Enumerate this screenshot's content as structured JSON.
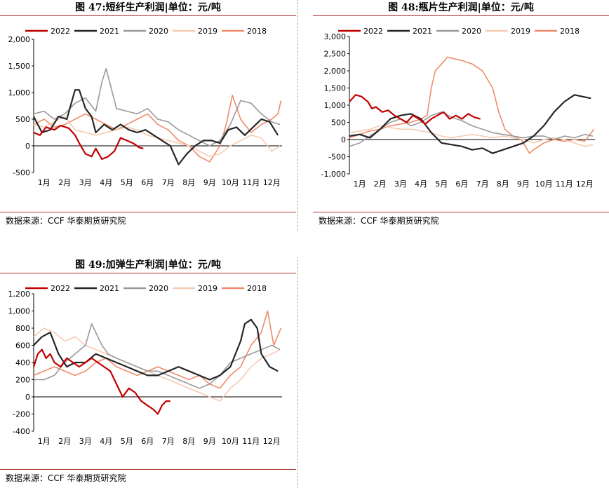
{
  "panels": [
    {
      "title": "图 47:短纤生产利润|单位：元/吨",
      "source": "数据来源：CCF 华泰期货研究院",
      "chart_data": {
        "type": "line",
        "ylim": [
          -500,
          2000
        ],
        "yticks": [
          "2,000",
          "1,500",
          "1,000",
          "500",
          "0",
          "-500"
        ],
        "ytick_values": [
          2000,
          1500,
          1000,
          500,
          0,
          -500
        ],
        "months": [
          "1月",
          "2月",
          "3月",
          "4月",
          "5月",
          "6月",
          "7月",
          "8月",
          "9月",
          "10月",
          "11月",
          "12月"
        ],
        "legend": [
          "2022",
          "2021",
          "2020",
          "2019",
          "2018"
        ],
        "series": [
          {
            "name": "2022",
            "color": "#c00000",
            "x": [
              0,
              0.3,
              0.6,
              1.0,
              1.3,
              1.7,
              2.0,
              2.2,
              2.5,
              2.8,
              3.0,
              3.3,
              3.6,
              3.9,
              4.2,
              4.5,
              4.8,
              5.1,
              5.3
            ],
            "y": [
              250,
              200,
              350,
              300,
              380,
              330,
              200,
              50,
              -150,
              -200,
              -50,
              -250,
              -200,
              -100,
              150,
              100,
              50,
              -30,
              -50
            ]
          },
          {
            "name": "2021",
            "color": "#262626",
            "x": [
              0,
              0.4,
              0.8,
              1.2,
              1.6,
              2.0,
              2.2,
              2.5,
              2.8,
              3.0,
              3.4,
              3.8,
              4.2,
              4.6,
              5.0,
              5.4,
              5.8,
              6.2,
              6.6,
              7.0,
              7.4,
              7.8,
              8.2,
              8.6,
              9.0,
              9.4,
              9.8,
              10.2,
              10.6,
              11.0,
              11.4,
              11.8
            ],
            "y": [
              550,
              250,
              300,
              550,
              500,
              1050,
              1050,
              700,
              550,
              250,
              400,
              300,
              400,
              300,
              250,
              300,
              200,
              100,
              0,
              -350,
              -150,
              0,
              100,
              100,
              50,
              300,
              350,
              200,
              350,
              500,
              450,
              200
            ]
          },
          {
            "name": "2020",
            "color": "#9a9a9a",
            "x": [
              0,
              0.5,
              1.0,
              1.5,
              2.0,
              2.5,
              3.0,
              3.3,
              3.5,
              3.7,
              4.0,
              4.5,
              5.0,
              5.5,
              6.0,
              6.5,
              7.0,
              7.5,
              8.0,
              8.5,
              9.0,
              9.5,
              10.0,
              10.5,
              11.0,
              11.5,
              11.9
            ],
            "y": [
              600,
              650,
              500,
              600,
              800,
              900,
              650,
              1200,
              1450,
              1150,
              700,
              650,
              600,
              700,
              500,
              450,
              300,
              200,
              100,
              0,
              100,
              400,
              850,
              800,
              600,
              450,
              400
            ]
          },
          {
            "name": "2019",
            "color": "#f6cbb3",
            "x": [
              0,
              0.5,
              1.0,
              1.5,
              2.0,
              2.5,
              3.0,
              3.5,
              4.0,
              4.5,
              5.0,
              5.5,
              6.0,
              6.5,
              7.0,
              7.5,
              8.0,
              8.5,
              9.0,
              9.5,
              10.0,
              10.5,
              11.0,
              11.5,
              11.9
            ],
            "y": [
              400,
              350,
              450,
              550,
              300,
              250,
              200,
              250,
              300,
              350,
              300,
              200,
              150,
              100,
              50,
              0,
              -100,
              -200,
              -150,
              0,
              100,
              200,
              150,
              -100,
              0
            ]
          },
          {
            "name": "2018",
            "color": "#ef8b6a",
            "x": [
              0,
              0.5,
              1.0,
              1.5,
              2.0,
              2.5,
              3.0,
              3.5,
              4.0,
              4.5,
              5.0,
              5.5,
              6.0,
              6.5,
              7.0,
              7.5,
              8.0,
              8.5,
              9.0,
              9.3,
              9.6,
              10.0,
              10.5,
              11.0,
              11.5,
              11.8,
              11.95
            ],
            "y": [
              400,
              500,
              350,
              400,
              500,
              600,
              500,
              400,
              300,
              400,
              500,
              600,
              400,
              300,
              100,
              0,
              -200,
              -300,
              0,
              400,
              950,
              500,
              250,
              400,
              500,
              600,
              850
            ]
          }
        ]
      }
    },
    {
      "title": "图 48:瓶片生产利润|单位：元/吨",
      "source": "数据来源：CCF 华泰期货研究院",
      "chart_data": {
        "type": "line",
        "ylim": [
          -1000,
          3000
        ],
        "yticks": [
          "3,000",
          "2,500",
          "2,000",
          "1,500",
          "1,000",
          "500",
          "0",
          "-500",
          "-1,000"
        ],
        "ytick_values": [
          3000,
          2500,
          2000,
          1500,
          1000,
          500,
          0,
          -500,
          -1000
        ],
        "months": [
          "1月",
          "2月",
          "3月",
          "4月",
          "5月",
          "6月",
          "7月",
          "8月",
          "9月",
          "10月",
          "11月",
          "12月"
        ],
        "legend": [
          "2022",
          "2021",
          "2020",
          "2019",
          "2018"
        ],
        "series": [
          {
            "name": "2022",
            "color": "#c00000",
            "x": [
              0,
              0.3,
              0.6,
              0.9,
              1.1,
              1.3,
              1.6,
              1.9,
              2.2,
              2.5,
              2.8,
              3.1,
              3.4,
              3.7,
              4.0,
              4.3,
              4.6,
              4.9,
              5.2,
              5.5,
              5.8,
              6.1,
              6.4
            ],
            "y": [
              1100,
              1300,
              1250,
              1100,
              900,
              950,
              800,
              850,
              700,
              600,
              500,
              700,
              600,
              450,
              600,
              700,
              800,
              600,
              700,
              600,
              750,
              650,
              600
            ]
          },
          {
            "name": "2021",
            "color": "#262626",
            "x": [
              0,
              0.5,
              1.0,
              1.5,
              2.0,
              2.5,
              3.0,
              3.5,
              4.0,
              4.5,
              5.0,
              5.5,
              6.0,
              6.5,
              7.0,
              7.5,
              8.0,
              8.5,
              9.0,
              9.5,
              10.0,
              10.5,
              11.0,
              11.4,
              11.8
            ],
            "y": [
              100,
              150,
              50,
              300,
              600,
              700,
              750,
              600,
              200,
              -100,
              -150,
              -200,
              -300,
              -250,
              -400,
              -300,
              -200,
              -100,
              100,
              400,
              800,
              1100,
              1300,
              1250,
              1200
            ]
          },
          {
            "name": "2020",
            "color": "#9a9a9a",
            "x": [
              0,
              0.5,
              1.0,
              1.5,
              2.0,
              2.5,
              3.0,
              3.5,
              4.0,
              4.5,
              5.0,
              5.5,
              6.0,
              6.5,
              7.0,
              7.5,
              8.0,
              8.5,
              9.0,
              9.5,
              10.0,
              10.5,
              11.0,
              11.5,
              11.9
            ],
            "y": [
              -200,
              -100,
              100,
              300,
              500,
              600,
              400,
              500,
              700,
              800,
              650,
              550,
              400,
              300,
              200,
              150,
              100,
              50,
              100,
              100,
              0,
              100,
              50,
              150,
              100
            ]
          },
          {
            "name": "2019",
            "color": "#f6cbb3",
            "x": [
              0,
              0.5,
              1.0,
              1.5,
              2.0,
              2.5,
              3.0,
              3.5,
              4.0,
              4.5,
              5.0,
              5.5,
              6.0,
              6.5,
              7.0,
              7.5,
              8.0,
              8.5,
              9.0,
              9.5,
              10.0,
              10.5,
              11.0,
              11.5,
              11.9
            ],
            "y": [
              200,
              250,
              300,
              400,
              350,
              300,
              300,
              250,
              200,
              100,
              50,
              100,
              150,
              100,
              50,
              100,
              50,
              0,
              -100,
              0,
              50,
              0,
              -100,
              -200,
              -150
            ]
          },
          {
            "name": "2018",
            "color": "#ef8b6a",
            "x": [
              0,
              0.5,
              1.0,
              1.5,
              2.0,
              2.5,
              3.0,
              3.5,
              3.8,
              4.0,
              4.2,
              4.5,
              4.8,
              5.1,
              5.5,
              6.0,
              6.5,
              7.0,
              7.3,
              7.6,
              8.0,
              8.4,
              8.8,
              9.0,
              9.5,
              10.0,
              10.5,
              11.0,
              11.5,
              11.95
            ],
            "y": [
              50,
              150,
              250,
              300,
              400,
              450,
              500,
              600,
              700,
              1500,
              2000,
              2200,
              2400,
              2350,
              2300,
              2200,
              2000,
              1500,
              800,
              300,
              100,
              0,
              -400,
              -300,
              -100,
              0,
              -50,
              0,
              -50,
              300
            ]
          }
        ]
      }
    },
    {
      "title": "图 49:加弹生产利润|单位：元/吨",
      "source": "数据来源：CCF 华泰期货研究院",
      "chart_data": {
        "type": "line",
        "ylim": [
          -400,
          1200
        ],
        "yticks": [
          "1,200",
          "1,000",
          "800",
          "600",
          "400",
          "200",
          "0",
          "-200",
          "-400"
        ],
        "ytick_values": [
          1200,
          1000,
          800,
          600,
          400,
          200,
          0,
          -200,
          -400
        ],
        "months": [
          "1月",
          "2月",
          "3月",
          "4月",
          "5月",
          "6月",
          "7月",
          "8月",
          "9月",
          "10月",
          "11月",
          "12月"
        ],
        "legend": [
          "2022",
          "2021",
          "2020",
          "2019",
          "2018"
        ],
        "series": [
          {
            "name": "2022",
            "color": "#c00000",
            "x": [
              0,
              0.2,
              0.4,
              0.6,
              0.8,
              1.0,
              1.3,
              1.6,
              1.9,
              2.2,
              2.5,
              2.8,
              3.1,
              3.4,
              3.7,
              4.0,
              4.3,
              4.6,
              4.9,
              5.2,
              5.5,
              5.8,
              6.0,
              6.2,
              6.4,
              6.6
            ],
            "y": [
              350,
              500,
              550,
              450,
              500,
              400,
              350,
              450,
              400,
              350,
              400,
              450,
              400,
              350,
              300,
              150,
              0,
              100,
              50,
              -50,
              -100,
              -150,
              -200,
              -100,
              -50,
              -50
            ]
          },
          {
            "name": "2021",
            "color": "#262626",
            "x": [
              0,
              0.4,
              0.8,
              1.2,
              1.6,
              2.0,
              2.5,
              3.0,
              3.5,
              4.0,
              4.5,
              5.0,
              5.5,
              6.0,
              6.5,
              7.0,
              7.5,
              8.0,
              8.5,
              9.0,
              9.5,
              10.0,
              10.2,
              10.5,
              10.8,
              11.0,
              11.4,
              11.8
            ],
            "y": [
              600,
              700,
              750,
              500,
              350,
              400,
              400,
              500,
              450,
              400,
              350,
              300,
              250,
              250,
              300,
              350,
              300,
              250,
              200,
              250,
              350,
              650,
              850,
              900,
              800,
              500,
              350,
              300
            ]
          },
          {
            "name": "2020",
            "color": "#9a9a9a",
            "x": [
              0,
              0.5,
              1.0,
              1.5,
              2.0,
              2.5,
              2.8,
              3.0,
              3.3,
              3.6,
              4.0,
              4.5,
              5.0,
              5.5,
              6.0,
              6.5,
              7.0,
              7.5,
              8.0,
              8.5,
              9.0,
              9.5,
              10.0,
              10.5,
              11.0,
              11.5,
              11.9
            ],
            "y": [
              200,
              200,
              250,
              400,
              500,
              600,
              850,
              750,
              600,
              500,
              450,
              400,
              350,
              300,
              300,
              250,
              200,
              150,
              100,
              150,
              250,
              400,
              450,
              500,
              550,
              600,
              550
            ]
          },
          {
            "name": "2019",
            "color": "#f6cbb3",
            "x": [
              0,
              0.5,
              1.0,
              1.5,
              2.0,
              2.5,
              3.0,
              3.5,
              4.0,
              4.5,
              5.0,
              5.5,
              6.0,
              6.5,
              7.0,
              7.5,
              8.0,
              8.5,
              9.0,
              9.5,
              10.0,
              10.5,
              11.0,
              11.5,
              11.9
            ],
            "y": [
              700,
              800,
              750,
              650,
              700,
              600,
              550,
              500,
              450,
              400,
              350,
              300,
              250,
              200,
              150,
              100,
              50,
              0,
              -50,
              100,
              200,
              350,
              450,
              500,
              550
            ]
          },
          {
            "name": "2018",
            "color": "#ef8b6a",
            "x": [
              0,
              0.5,
              1.0,
              1.5,
              2.0,
              2.5,
              3.0,
              3.5,
              4.0,
              4.5,
              5.0,
              5.5,
              6.0,
              6.5,
              7.0,
              7.5,
              8.0,
              8.5,
              9.0,
              9.5,
              10.0,
              10.5,
              11.0,
              11.3,
              11.6,
              11.95
            ],
            "y": [
              250,
              300,
              350,
              300,
              250,
              300,
              400,
              450,
              350,
              300,
              250,
              300,
              350,
              300,
              250,
              200,
              250,
              150,
              100,
              250,
              350,
              600,
              750,
              1000,
              600,
              800
            ]
          }
        ]
      }
    }
  ]
}
